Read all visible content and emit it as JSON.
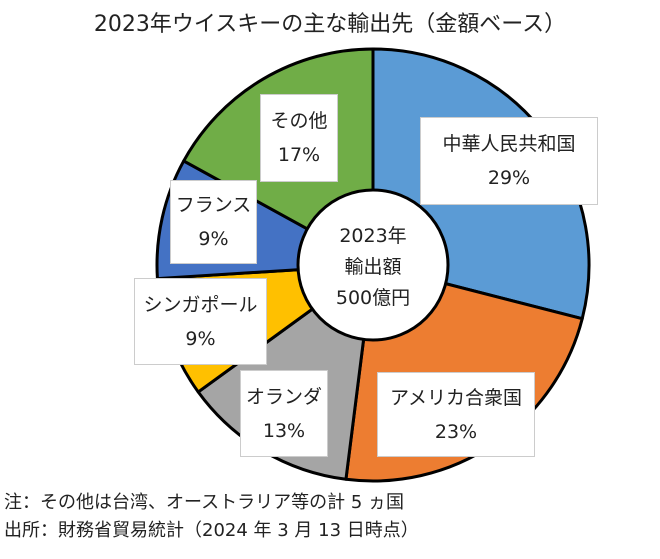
{
  "chart_data": {
    "type": "pie",
    "title": "2023年ウイスキーの主な輸出先（金額ベース）",
    "center_label": [
      "2023年",
      "輸出額",
      "500億円"
    ],
    "unit": "%",
    "slices": [
      {
        "label": "中華人民共和国",
        "value": 29,
        "value_label": "29%",
        "color": "#5B9BD5"
      },
      {
        "label": "アメリカ合衆国",
        "value": 23,
        "value_label": "23%",
        "color": "#ED7D31"
      },
      {
        "label": "オランダ",
        "value": 13,
        "value_label": "13%",
        "color": "#A5A5A5"
      },
      {
        "label": "シンガポール",
        "value": 9,
        "value_label": "9%",
        "color": "#FFC000"
      },
      {
        "label": "フランス",
        "value": 9,
        "value_label": "9%",
        "color": "#4472C4"
      },
      {
        "label": "その他",
        "value": 17,
        "value_label": "17%",
        "color": "#70AD47"
      }
    ]
  },
  "notes": {
    "note": "注：その他は台湾、オーストラリア等の計 5 ヵ国",
    "source": "出所：財務省貿易統計（2024 年 3 月 13 日時点）"
  }
}
